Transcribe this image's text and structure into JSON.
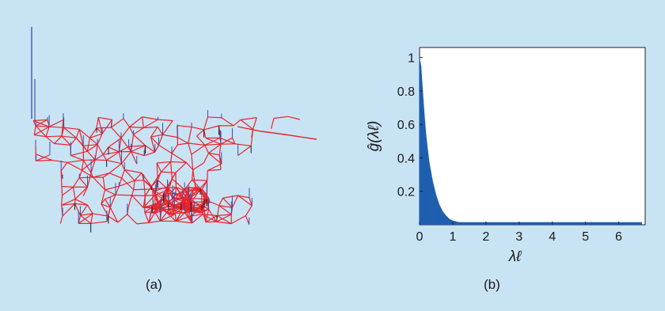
{
  "figure": {
    "panel_a_label": "(a)",
    "panel_b_label": "(b)"
  },
  "colors": {
    "background": "#c8e3f4",
    "graph_edges": "#e8242b",
    "signal_stems": "#3b4fa8",
    "negative_stems": "#1a1a1a",
    "spectrum_fill": "#1f5fae"
  },
  "chart_data": [
    {
      "type": "graph-signal",
      "panel": "(a)",
      "description_items": [
        "graph edges",
        "signal stems"
      ]
    },
    {
      "type": "scatter",
      "panel": "(b)",
      "xlabel": "λℓ",
      "ylabel": "ĝ(λℓ)",
      "xlim": [
        0,
        6.8
      ],
      "ylim": [
        0,
        1.06
      ],
      "xticks": [
        0,
        1,
        2,
        3,
        4,
        5,
        6
      ],
      "yticks": [
        0.2,
        0.4,
        0.6,
        0.8,
        1
      ],
      "ytick_labels": [
        "0.2",
        "0.4",
        "0.6",
        "0.8",
        "1"
      ],
      "curve": {
        "x": [
          0,
          0.05,
          0.1,
          0.15,
          0.2,
          0.25,
          0.3,
          0.4,
          0.5,
          0.6,
          0.7,
          0.8,
          0.9,
          1.0,
          1.2,
          1.5,
          2,
          3,
          4,
          5,
          6,
          6.7
        ],
        "y": [
          1.0,
          0.95,
          0.8,
          0.66,
          0.54,
          0.45,
          0.37,
          0.26,
          0.18,
          0.12,
          0.08,
          0.055,
          0.035,
          0.025,
          0.015,
          0.01,
          0.008,
          0.008,
          0.008,
          0.008,
          0.008,
          0.008
        ]
      }
    }
  ]
}
